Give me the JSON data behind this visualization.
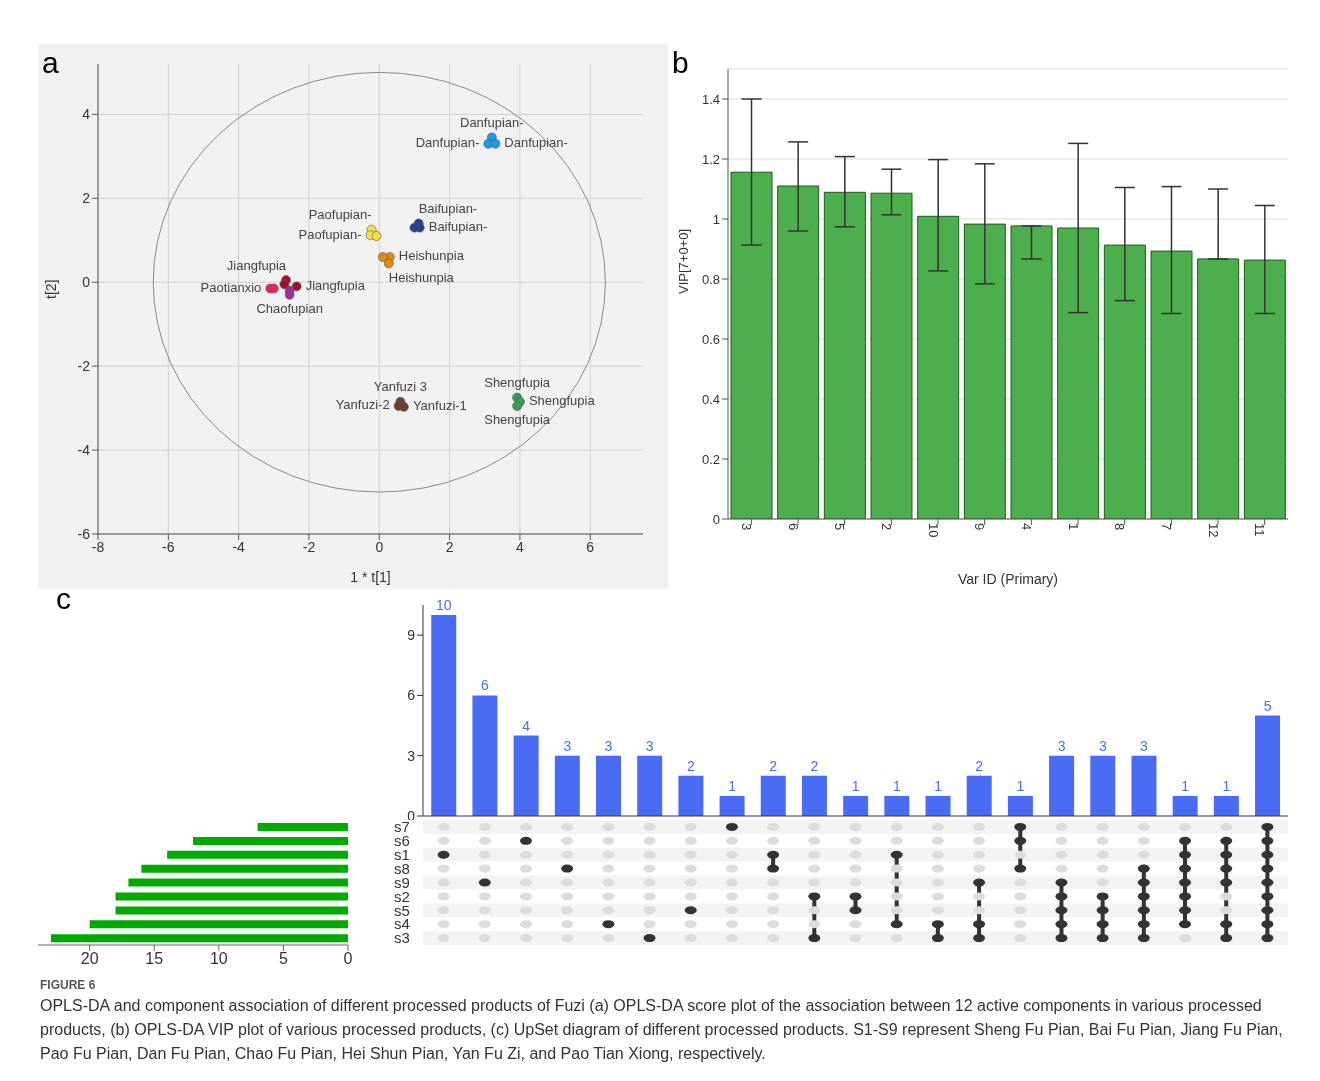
{
  "chart_data": [
    {
      "type": "scatter",
      "xlabel": "1 * t[1]",
      "ylabel": "t[2]",
      "marker": "circle",
      "grid": true,
      "x": [
        3.2,
        3.1,
        3.3,
        1.12,
        1.15,
        1.0,
        -0.22,
        -0.25,
        -0.08,
        0.3,
        0.27,
        0.1,
        -2.65,
        -2.35,
        -2.7,
        -3.1,
        -3.0,
        -2.55,
        -2.55,
        0.6,
        0.55,
        0.7,
        3.92,
        4.0,
        3.92
      ],
      "values": [
        3.45,
        3.3,
        3.3,
        1.4,
        1.3,
        1.3,
        1.25,
        1.12,
        1.1,
        0.6,
        0.45,
        0.6,
        0.05,
        -0.1,
        -0.05,
        -0.15,
        -0.15,
        -0.3,
        -0.2,
        -2.85,
        -2.95,
        -2.97,
        -2.75,
        -2.85,
        -2.95
      ],
      "colors": [
        "#1e9be6",
        "#1e9be6",
        "#1e9be6",
        "#2a3d9c",
        "#2a3d9c",
        "#2a3d9c",
        "#f2e04a",
        "#f2e04a",
        "#f2e04a",
        "#e3890f",
        "#e3890f",
        "#e3890f",
        "#9e1230",
        "#9e1230",
        "#9e1230",
        "#e8245e",
        "#e8245e",
        "#9b2f9b",
        "#9b2f9b",
        "#6e3f2a",
        "#6e3f2a",
        "#6e3f2a",
        "#3a9b55",
        "#3a9b55",
        "#3a9b55"
      ],
      "xlim": [
        -8,
        7.5
      ],
      "ylim": [
        -6,
        5.2
      ],
      "xticks": [
        -8,
        -6,
        -4,
        -2,
        0,
        2,
        4,
        6
      ],
      "yticks": [
        -6,
        -4,
        -2,
        0,
        2,
        4
      ],
      "annotations": [
        "a",
        {
          "text": "Danfupian-",
          "x": 3.2,
          "y": 3.45
        },
        {
          "text": "Danfupian-",
          "x": 3.1,
          "y": 3.3
        },
        {
          "text": "Danfupian-",
          "x": 3.3,
          "y": 3.3
        },
        {
          "text": "Baifupian-",
          "x": 1.12,
          "y": 1.4
        },
        {
          "text": "Baifupian-",
          "x": 1.15,
          "y": 1.3
        },
        {
          "text": "Paofupian-",
          "x": -0.22,
          "y": 1.25
        },
        {
          "text": "Paofupian-",
          "x": -0.25,
          "y": 1.12
        },
        {
          "text": "Heishunpia",
          "x": 0.3,
          "y": 0.6
        },
        {
          "text": "Heishunpia",
          "x": 0.27,
          "y": 0.45
        },
        {
          "text": "Jiangfupia",
          "x": -2.65,
          "y": 0.05
        },
        {
          "text": "Jiangfupia",
          "x": -2.35,
          "y": -0.1
        },
        {
          "text": "Paotianxio",
          "x": -3.1,
          "y": -0.15
        },
        {
          "text": "Chaofupian",
          "x": -2.55,
          "y": -0.3
        },
        {
          "text": "Yanfuzi 3",
          "x": 0.6,
          "y": -2.85
        },
        {
          "text": "Yanfuzi-2",
          "x": 0.55,
          "y": -2.95
        },
        {
          "text": "Yanfuzi-1",
          "x": 0.7,
          "y": -2.97
        },
        {
          "text": "Shengfupia",
          "x": 3.92,
          "y": -2.75
        },
        {
          "text": "Shengfupia",
          "x": 4.0,
          "y": -2.85
        },
        {
          "text": "Shengfupia",
          "x": 3.92,
          "y": -2.95
        }
      ]
    },
    {
      "type": "bar",
      "xlabel": "Var ID (Primary)",
      "ylabel": "VIP[7+0+0]",
      "grid": "y",
      "color": "#4cae4c",
      "categories": [
        "3",
        "6",
        "5",
        "2",
        "10",
        "9",
        "4",
        "1",
        "8",
        "7",
        "12",
        "11"
      ],
      "values": [
        1.156,
        1.11,
        1.089,
        1.086,
        1.009,
        0.983,
        0.977,
        0.97,
        0.913,
        0.893,
        0.867,
        0.863
      ],
      "errors": [
        [
          0.913,
          1.4
        ],
        [
          0.96,
          1.257
        ],
        [
          0.974,
          1.208
        ],
        [
          1.014,
          1.166
        ],
        [
          0.827,
          1.198
        ],
        [
          0.784,
          1.184
        ],
        [
          0.867,
          0.977
        ],
        [
          0.688,
          1.252
        ],
        [
          0.728,
          1.105
        ],
        [
          0.685,
          1.108
        ],
        [
          0.867,
          1.1
        ],
        [
          0.685,
          1.045
        ]
      ],
      "ylim": [
        0,
        1.5
      ],
      "yticks": [
        0,
        0.2,
        0.4,
        0.6,
        0.8,
        1,
        1.2,
        1.4
      ],
      "annotations": [
        "b"
      ]
    },
    {
      "type": "bar",
      "color": "#4a6cf5",
      "data_labels": true,
      "categories": [
        null,
        null,
        null,
        null,
        null,
        null,
        null,
        null,
        null,
        null,
        null,
        null,
        null,
        null,
        null,
        null,
        null,
        null,
        null,
        null,
        null
      ],
      "values": [
        10,
        6,
        4,
        3,
        3,
        3,
        2,
        1,
        2,
        2,
        1,
        1,
        1,
        2,
        1,
        3,
        3,
        3,
        1,
        1,
        5
      ],
      "ylim": [
        0,
        10.5
      ],
      "yticks": [
        0,
        3,
        6,
        9
      ],
      "annotations": [
        "c"
      ]
    },
    {
      "type": "bar",
      "orientation": "horizontal",
      "color": "#00aa00",
      "categories": [
        "s7",
        "s6",
        "s1",
        "s8",
        "s9",
        "s2",
        "s5",
        "s4",
        "s3"
      ],
      "values": [
        7,
        12,
        14,
        16,
        17,
        18,
        18,
        20,
        23
      ],
      "xlim": [
        24,
        0
      ],
      "xticks": [
        20,
        15,
        10,
        5,
        0
      ],
      "annotations": [
        "FIGURE 6",
        "OPLS-DA and component association of different processed products of Fuzi (a) OPLS-DA score plot of the association between 12 active components in various processed products, (b) OPLS-DA VIP plot of various processed products, (c) UpSet diagram of different processed products. S1-S9 represent Sheng Fu Pian, Bai Fu Pian, Jiang Fu Pian, Pao Fu Pian, Dan Fu Pian, Chao Fu Pian, Hei Shun Pian, Yan Fu Zi, and Pao Tian Xiong, respectively."
      ]
    }
  ]
}
